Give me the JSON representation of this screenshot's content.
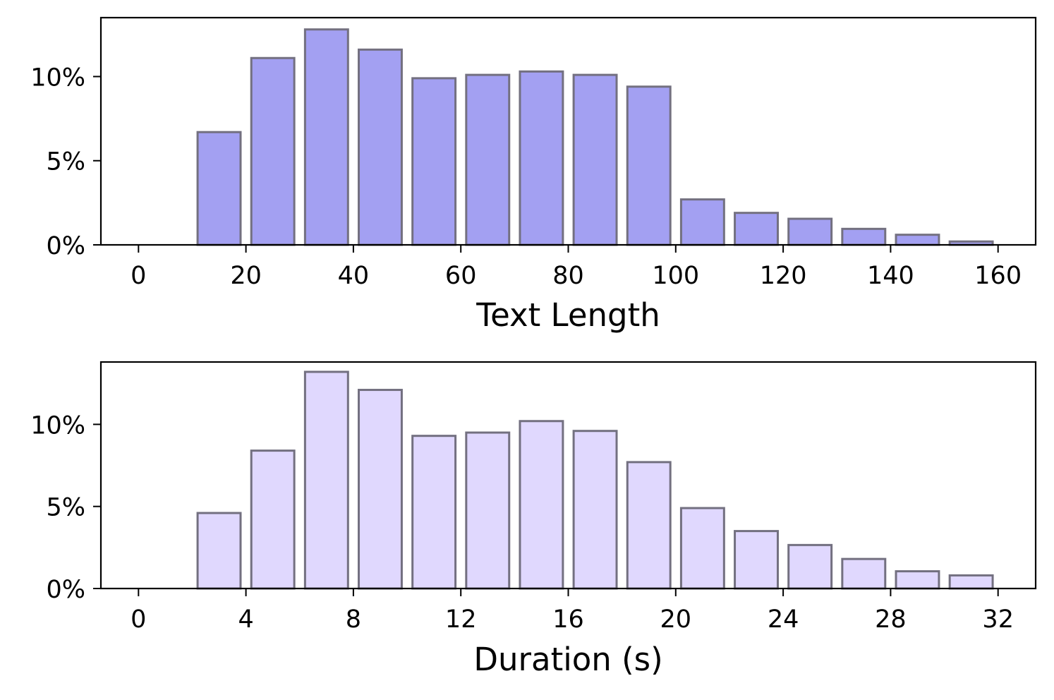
{
  "chart_data": [
    {
      "type": "bar",
      "xlabel": "Text Length",
      "ylabel": "",
      "x_ticks": [
        "0",
        "20",
        "40",
        "60",
        "80",
        "100",
        "120",
        "140",
        "160"
      ],
      "y_ticks": [
        "0%",
        "5%",
        "10%"
      ],
      "xlim": [
        -7,
        167
      ],
      "ylim": [
        0,
        13.5
      ],
      "bin_width": 10,
      "bar_color": "#a3a0f2",
      "edge_color": "#737080",
      "series": [
        {
          "x": [
            0,
            10,
            20,
            30,
            40,
            50,
            60,
            70,
            80,
            90,
            100,
            110,
            120,
            130,
            140,
            150
          ],
          "values": [
            0,
            6.7,
            11.1,
            12.8,
            11.6,
            9.9,
            10.1,
            10.3,
            10.1,
            9.4,
            2.7,
            1.9,
            1.55,
            0.95,
            0.6,
            0.2
          ]
        }
      ]
    },
    {
      "type": "bar",
      "xlabel": "Duration (s)",
      "ylabel": "",
      "x_ticks": [
        "0",
        "4",
        "8",
        "12",
        "16",
        "20",
        "24",
        "28",
        "32"
      ],
      "y_ticks": [
        "0%",
        "5%",
        "10%"
      ],
      "xlim": [
        -1.4,
        33.4
      ],
      "ylim": [
        0,
        13.8
      ],
      "bin_width": 2,
      "bar_color": "#e0d8fe",
      "edge_color": "#737080",
      "series": [
        {
          "x": [
            0,
            2,
            4,
            6,
            8,
            10,
            12,
            14,
            16,
            18,
            20,
            22,
            24,
            26,
            28,
            30
          ],
          "values": [
            0,
            4.6,
            8.4,
            13.2,
            12.1,
            9.3,
            9.5,
            10.2,
            9.6,
            7.7,
            4.9,
            3.5,
            2.65,
            1.8,
            1.05,
            0.8
          ]
        }
      ]
    }
  ]
}
